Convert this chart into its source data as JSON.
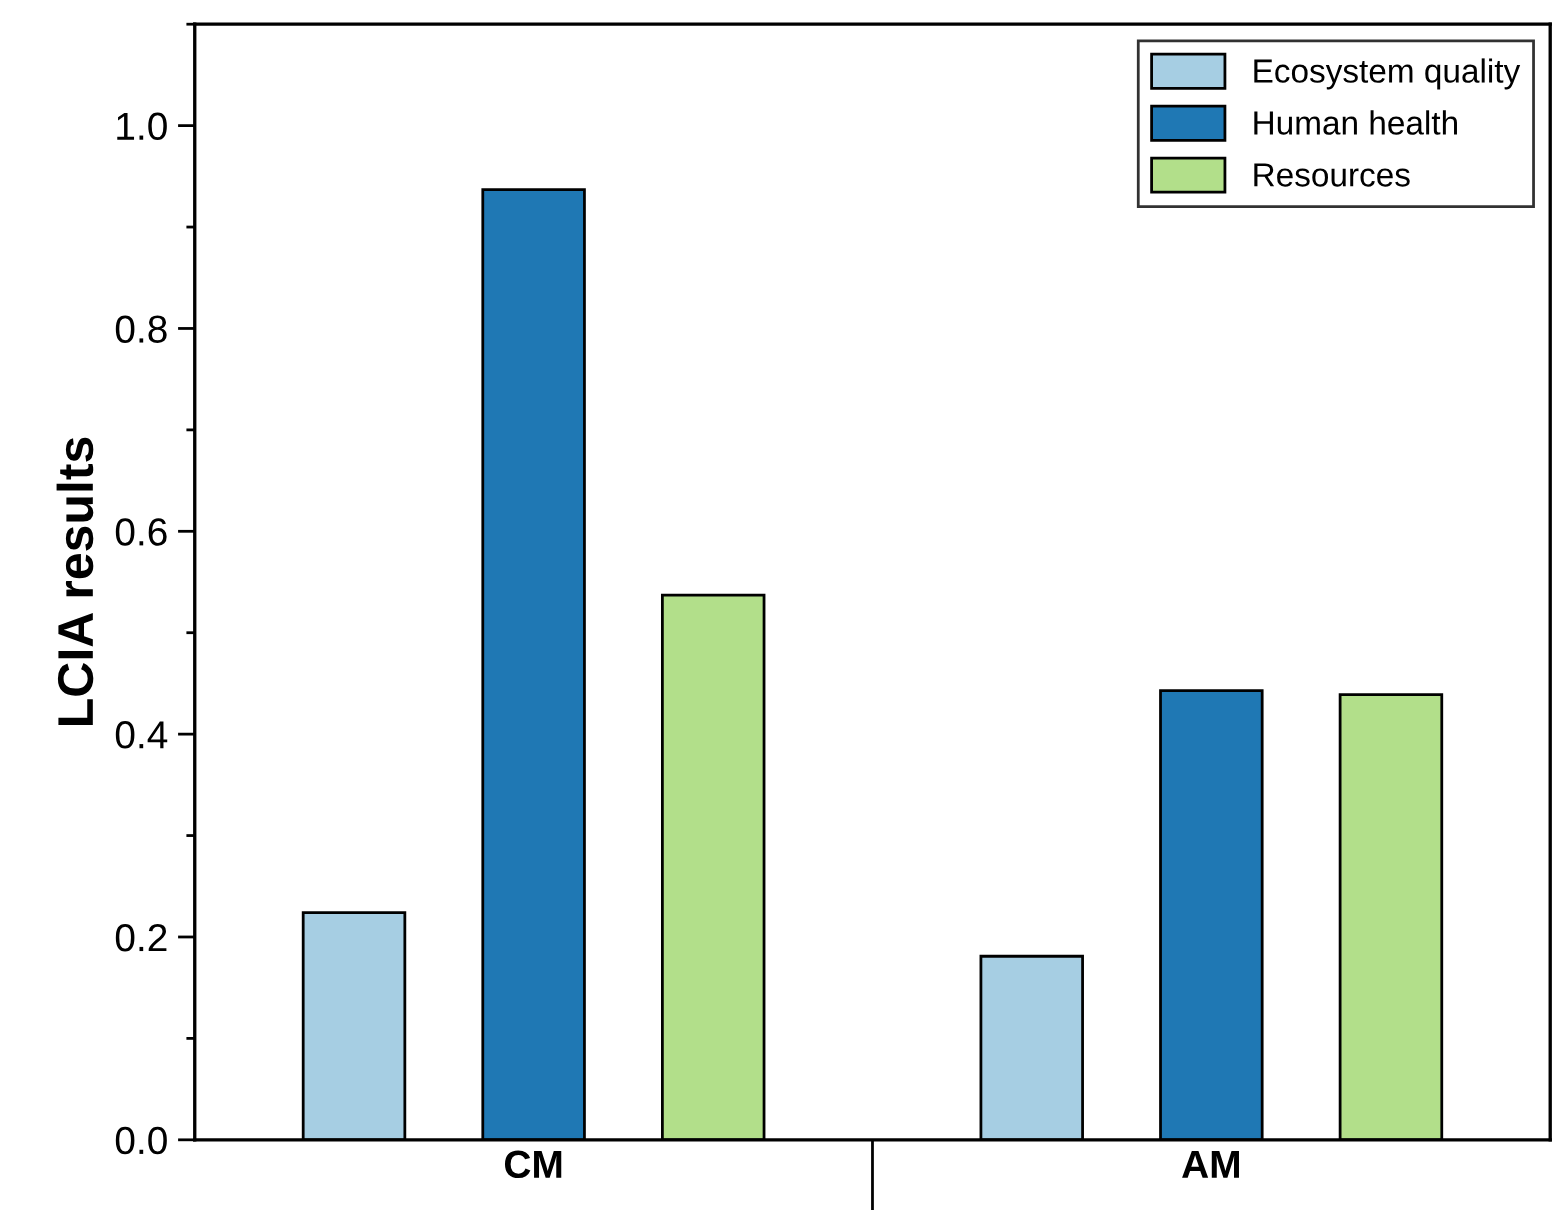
{
  "chart_data": {
    "type": "bar",
    "ylabel": "LCIA results",
    "categories": [
      "CM",
      "AM"
    ],
    "series": [
      {
        "name": "Ecosystem quality",
        "color": "#a6cee3",
        "values": [
          0.224,
          0.181
        ]
      },
      {
        "name": "Human health",
        "color": "#1f78b4",
        "values": [
          0.937,
          0.443
        ]
      },
      {
        "name": "Resources",
        "color": "#b2df8a",
        "values": [
          0.537,
          0.439
        ]
      }
    ],
    "ylim": [
      0,
      1.1
    ],
    "yticks": [
      {
        "value": 0,
        "label": "0.0"
      },
      0.2,
      0.4,
      0.6,
      0.8,
      {
        "value": 1,
        "label": "1.0"
      }
    ],
    "grid": false,
    "legend": "top right"
  }
}
